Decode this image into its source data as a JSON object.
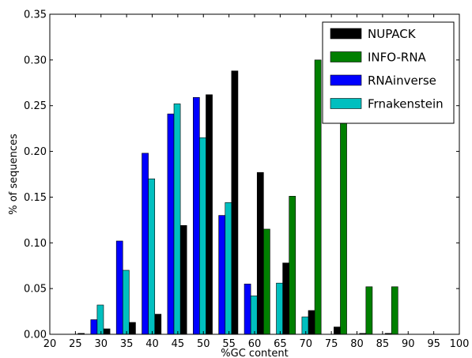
{
  "chart_data": {
    "type": "bar",
    "xlabel": "%GC content",
    "ylabel": "% of sequences",
    "xlim": [
      20,
      100
    ],
    "ylim": [
      0,
      0.35
    ],
    "x_ticks": [
      20,
      25,
      30,
      35,
      40,
      45,
      50,
      55,
      60,
      65,
      70,
      75,
      80,
      85,
      90,
      95,
      100
    ],
    "x_tick_labels": [
      "20",
      "25",
      "30",
      "35",
      "40",
      "45",
      "50",
      "55",
      "60",
      "65",
      "70",
      "75",
      "80",
      "85",
      "90",
      "95",
      "100"
    ],
    "y_ticks": [
      0,
      0.05,
      0.1,
      0.15,
      0.2,
      0.25,
      0.3,
      0.35
    ],
    "y_tick_labels": [
      "0.00",
      "0.05",
      "0.10",
      "0.15",
      "0.20",
      "0.25",
      "0.30",
      "0.35"
    ],
    "grid": false,
    "legend_position": "top-right",
    "series": [
      {
        "name": "NUPACK",
        "color": "#000000",
        "x": [
          28,
          33,
          38,
          43,
          48,
          53,
          58,
          63,
          68,
          73,
          78,
          83,
          88
        ],
        "values": [
          0.001,
          0.006,
          0.013,
          0.022,
          0.119,
          0.262,
          0.288,
          0.177,
          0.078,
          0.026,
          0.008,
          0.001,
          0.001
        ]
      },
      {
        "name": "INFO-RNA",
        "color": "#007F00",
        "x": [
          63,
          68,
          73,
          78,
          83,
          88
        ],
        "values": [
          0.115,
          0.151,
          0.3,
          0.3,
          0.052,
          0.052
        ]
      },
      {
        "name": "RNAinverse",
        "color": "#0000FF",
        "x": [
          28,
          33,
          38,
          43,
          48,
          53,
          58
        ],
        "values": [
          0.016,
          0.102,
          0.198,
          0.241,
          0.259,
          0.13,
          0.055
        ]
      },
      {
        "name": "Frnakenstein",
        "color": "#00BFBF",
        "x": [
          28,
          33,
          38,
          43,
          48,
          53,
          58,
          63,
          68
        ],
        "values": [
          0.032,
          0.07,
          0.17,
          0.252,
          0.215,
          0.144,
          0.042,
          0.056,
          0.019
        ]
      }
    ]
  }
}
